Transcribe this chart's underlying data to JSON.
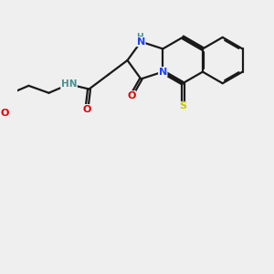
{
  "background_color": "#efefef",
  "bond_color": "#1a1a1a",
  "N_color": "#1e40ff",
  "NH_color": "#4a9090",
  "O_color": "#e00000",
  "S_color": "#c8c800",
  "figsize": [
    3.0,
    3.0
  ],
  "dpi": 100,
  "xlim": [
    -0.5,
    4.8
  ],
  "ylim": [
    -2.2,
    2.8
  ]
}
